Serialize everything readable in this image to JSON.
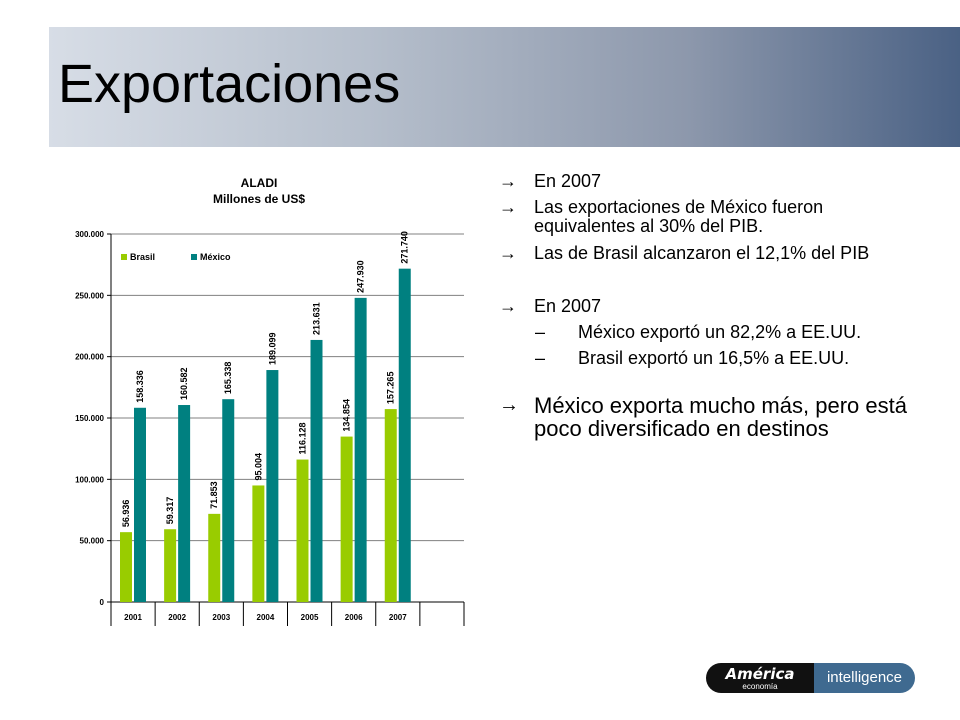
{
  "slide": {
    "title": "Exportaciones"
  },
  "chart_data": {
    "type": "bar",
    "title": "ALADI",
    "subtitle": "Millones de US$",
    "categories": [
      "2001",
      "2002",
      "2003",
      "2004",
      "2005",
      "2006",
      "2007"
    ],
    "series": [
      {
        "name": "Brasil",
        "color": "#99cc00",
        "values": [
          56936,
          59317,
          71853,
          95004,
          116128,
          134854,
          157265
        ],
        "labels": [
          "56.936",
          "59.317",
          "71.853",
          "95.004",
          "116.128",
          "134.854",
          "157.265"
        ]
      },
      {
        "name": "México",
        "color": "#008080",
        "values": [
          158336,
          160582,
          165338,
          189099,
          213631,
          247930,
          271740
        ],
        "labels": [
          "158.336",
          "160.582",
          "165.338",
          "189.099",
          "213.631",
          "247.930",
          "271.740"
        ]
      }
    ],
    "ylim": [
      0,
      300000
    ],
    "yticks": [
      "0",
      "50.000",
      "100.000",
      "150.000",
      "200.000",
      "250.000",
      "300.000"
    ],
    "grid": true,
    "legend": "top-left"
  },
  "bullets": {
    "b1": "En 2007",
    "b2": "Las exportaciones de México fueron equivalentes al 30% del PIB.",
    "b3": "Las de Brasil alcanzaron el 12,1% del PIB",
    "b4": "En 2007",
    "s1": "México exportó un 82,2% a EE.UU.",
    "s2": "Brasil exportó un 16,5% a EE.UU.",
    "b5": "México exporta mucho más, pero está poco diversificado en destinos",
    "arrow": "→",
    "dash": "–"
  },
  "logo": {
    "brand": "América",
    "sub": "economía",
    "tag": "intelligence"
  }
}
